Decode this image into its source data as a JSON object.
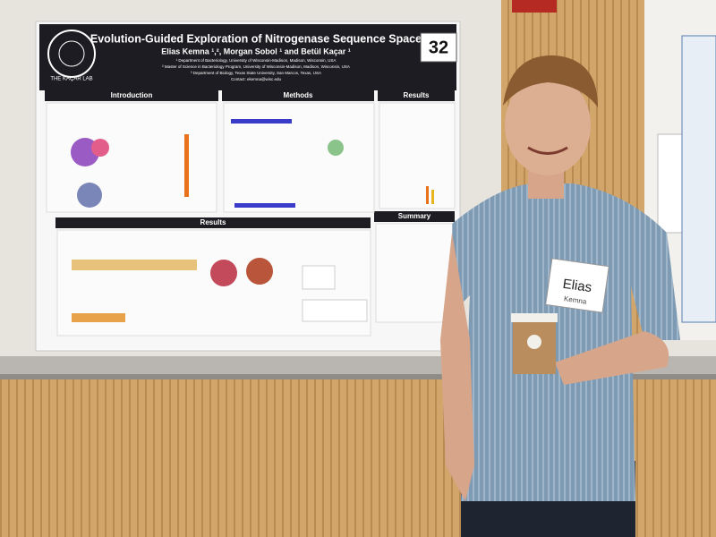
{
  "poster": {
    "logo": "THE KAÇAR LAB",
    "number": "32",
    "title": "Evolution-Guided Exploration of Nitrogenase Sequence Space",
    "authors": "Elias Kemna ¹,², Morgan Sobol ¹ and Betül Kaçar ¹",
    "affiliations": [
      "¹ Department of Bacteriology, University of Wisconsin-Madison, Madison, Wisconsin, USA",
      "² Master of Science in Bacteriology Program, University of Wisconsin-Madison, Madison, Wisconsin, USA",
      "³ Department of Biology, Texas State University, San Marcos, Texas, USA",
      "Contact: ekemna@wisc.edu"
    ],
    "sections": [
      "Introduction",
      "Methods",
      "Results",
      "Results",
      "Summary"
    ]
  },
  "name_tag": {
    "first": "Elias",
    "last": "Kemna"
  }
}
